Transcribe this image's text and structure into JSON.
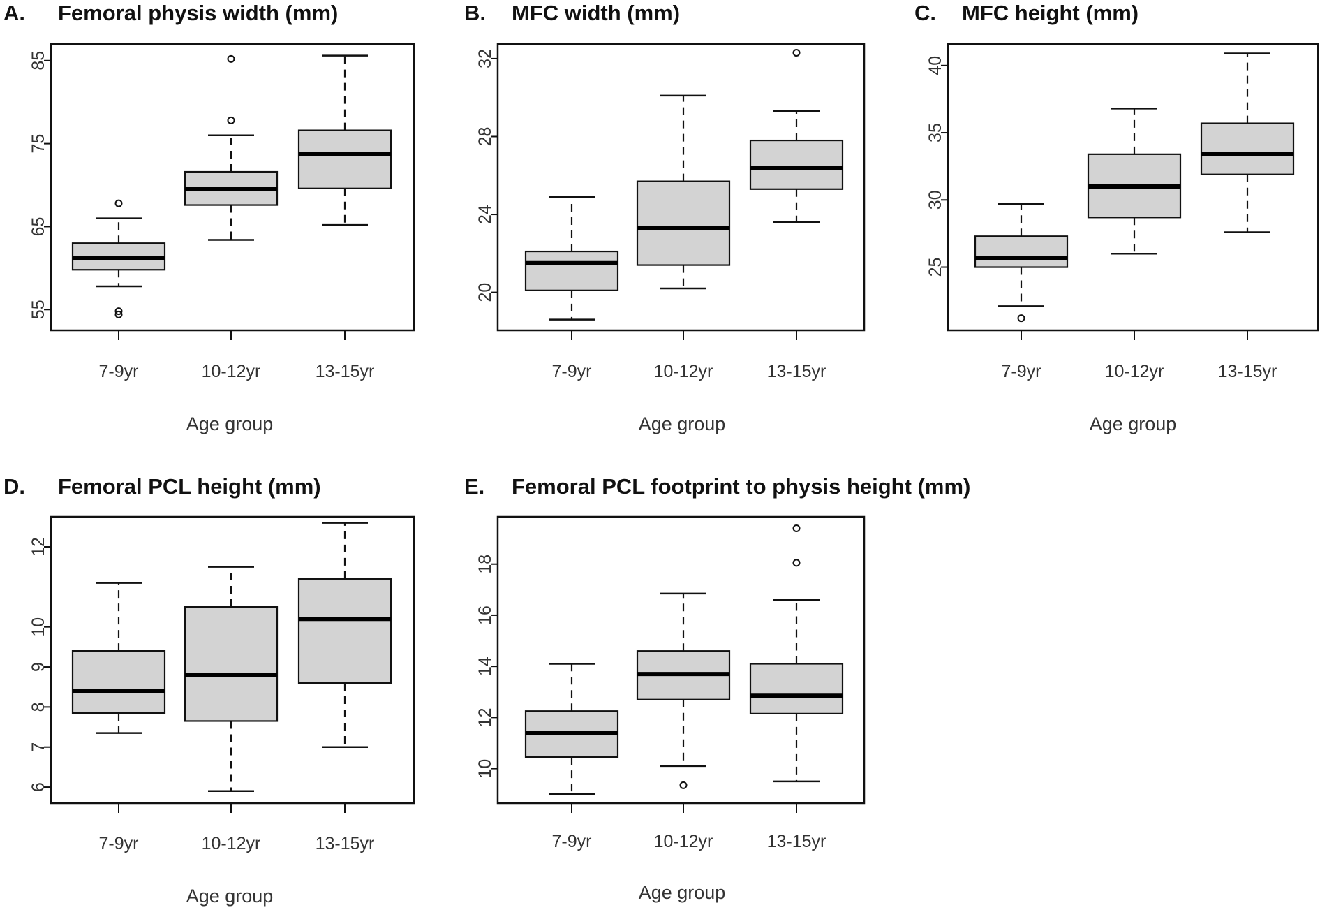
{
  "chart_data": [
    {
      "panel": "A.",
      "type": "boxplot",
      "title": "Femoral physis width (mm)",
      "xlabel": "Age group",
      "ylabel": "",
      "categories": [
        "7-9yr",
        "10-12yr",
        "13-15yr"
      ],
      "ylim": [
        52.5,
        87
      ],
      "yticks": [
        55,
        65,
        75,
        85
      ],
      "boxes": [
        {
          "category": "7-9yr",
          "whisker_low": 57.8,
          "q1": 59.8,
          "median": 61.2,
          "q3": 63.0,
          "whisker_high": 66.0,
          "outliers": [
            67.8,
            54.8,
            54.4
          ]
        },
        {
          "category": "10-12yr",
          "whisker_low": 63.4,
          "q1": 67.6,
          "median": 69.5,
          "q3": 71.6,
          "whisker_high": 76.0,
          "outliers": [
            85.2,
            77.8
          ]
        },
        {
          "category": "13-15yr",
          "whisker_low": 65.2,
          "q1": 69.6,
          "median": 73.7,
          "q3": 76.6,
          "whisker_high": 85.6,
          "outliers": []
        }
      ]
    },
    {
      "panel": "B.",
      "type": "boxplot",
      "title": "MFC width (mm)",
      "xlabel": "Age group",
      "ylabel": "",
      "categories": [
        "7-9yr",
        "10-12yr",
        "13-15yr"
      ],
      "ylim": [
        18.05,
        32.75
      ],
      "yticks": [
        20,
        24,
        28,
        32
      ],
      "boxes": [
        {
          "category": "7-9yr",
          "whisker_low": 18.6,
          "q1": 20.1,
          "median": 21.5,
          "q3": 22.1,
          "whisker_high": 24.9,
          "outliers": []
        },
        {
          "category": "10-12yr",
          "whisker_low": 20.2,
          "q1": 21.4,
          "median": 23.3,
          "q3": 25.7,
          "whisker_high": 30.1,
          "outliers": []
        },
        {
          "category": "13-15yr",
          "whisker_low": 23.6,
          "q1": 25.3,
          "median": 26.4,
          "q3": 27.8,
          "whisker_high": 29.3,
          "outliers": [
            32.3
          ]
        }
      ]
    },
    {
      "panel": "C.",
      "type": "boxplot",
      "title": "MFC height (mm)",
      "xlabel": "Age group",
      "ylabel": "",
      "categories": [
        "7-9yr",
        "10-12yr",
        "13-15yr"
      ],
      "ylim": [
        20.3,
        41.6
      ],
      "yticks": [
        25,
        30,
        35,
        40
      ],
      "boxes": [
        {
          "category": "7-9yr",
          "whisker_low": 22.1,
          "q1": 25.0,
          "median": 25.7,
          "q3": 27.3,
          "whisker_high": 29.7,
          "outliers": [
            21.2
          ]
        },
        {
          "category": "10-12yr",
          "whisker_low": 26.0,
          "q1": 28.7,
          "median": 31.0,
          "q3": 33.4,
          "whisker_high": 36.8,
          "outliers": []
        },
        {
          "category": "13-15yr",
          "whisker_low": 27.6,
          "q1": 31.9,
          "median": 33.4,
          "q3": 35.7,
          "whisker_high": 40.9,
          "outliers": []
        }
      ]
    },
    {
      "panel": "D.",
      "type": "boxplot",
      "title": "Femoral PCL height (mm)",
      "xlabel": "Age group",
      "ylabel": "",
      "categories": [
        "7-9yr",
        "10-12yr",
        "13-15yr"
      ],
      "ylim": [
        5.6,
        12.75
      ],
      "yticks": [
        6,
        7,
        8,
        9,
        10,
        12
      ],
      "boxes": [
        {
          "category": "7-9yr",
          "whisker_low": 7.35,
          "q1": 7.85,
          "median": 8.4,
          "q3": 9.4,
          "whisker_high": 11.1,
          "outliers": []
        },
        {
          "category": "10-12yr",
          "whisker_low": 5.9,
          "q1": 7.65,
          "median": 8.8,
          "q3": 10.5,
          "whisker_high": 11.5,
          "outliers": []
        },
        {
          "category": "13-15yr",
          "whisker_low": 7.0,
          "q1": 8.6,
          "median": 10.2,
          "q3": 11.2,
          "whisker_high": 12.6,
          "outliers": []
        }
      ]
    },
    {
      "panel": "E.",
      "type": "boxplot",
      "title": "Femoral PCL footprint to physis height (mm)",
      "xlabel": "Age group",
      "ylabel": "",
      "categories": [
        "7-9yr",
        "10-12yr",
        "13-15yr"
      ],
      "ylim": [
        8.65,
        19.85
      ],
      "yticks": [
        10,
        12,
        14,
        16,
        18
      ],
      "boxes": [
        {
          "category": "7-9yr",
          "whisker_low": 9.0,
          "q1": 10.45,
          "median": 11.4,
          "q3": 12.25,
          "whisker_high": 14.1,
          "outliers": []
        },
        {
          "category": "10-12yr",
          "whisker_low": 10.1,
          "q1": 12.7,
          "median": 13.7,
          "q3": 14.6,
          "whisker_high": 16.85,
          "outliers": [
            9.35
          ]
        },
        {
          "category": "13-15yr",
          "whisker_low": 9.5,
          "q1": 12.15,
          "median": 12.85,
          "q3": 14.1,
          "whisker_high": 16.6,
          "outliers": [
            19.4,
            18.05
          ]
        }
      ]
    }
  ]
}
